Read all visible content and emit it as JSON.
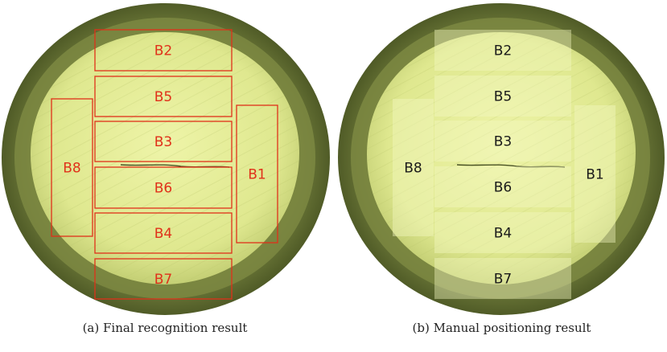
{
  "colors": {
    "rim_dark": "#3f4a1c",
    "rim_mid": "#6e7a3a",
    "core": "#dfe88f",
    "core_light": "#eef4a8",
    "overlay": "#f4f8c2",
    "recognition_box": "#e0311a",
    "manual_label": "#1a1a1a"
  },
  "panels": [
    {
      "id": "a",
      "caption": "(a) Final recognition result",
      "style": "outline",
      "blocks": [
        {
          "label": "B2"
        },
        {
          "label": "B5"
        },
        {
          "label": "B3"
        },
        {
          "label": "B6"
        },
        {
          "label": "B4"
        },
        {
          "label": "B7"
        },
        {
          "label": "B8"
        },
        {
          "label": "B1"
        }
      ]
    },
    {
      "id": "b",
      "caption": "(b) Manual positioning result",
      "style": "filled",
      "blocks": [
        {
          "label": "B2"
        },
        {
          "label": "B5"
        },
        {
          "label": "B3"
        },
        {
          "label": "B6"
        },
        {
          "label": "B4"
        },
        {
          "label": "B7"
        },
        {
          "label": "B8"
        },
        {
          "label": "B1"
        }
      ]
    }
  ]
}
